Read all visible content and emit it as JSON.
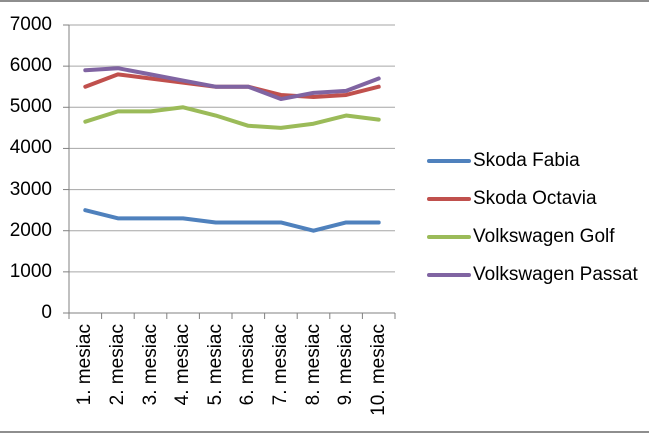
{
  "chart_data": {
    "type": "line",
    "title": "",
    "xlabel": "",
    "ylabel": "",
    "categories": [
      "1. mesiac",
      "2. mesiac",
      "3. mesiac",
      "4. mesiac",
      "5. mesiac",
      "6. mesiac",
      "7. mesiac",
      "8. mesiac",
      "9. mesiac",
      "10. mesiac"
    ],
    "series": [
      {
        "name": "Skoda Fabia",
        "color": "#4F81BD",
        "values": [
          2500,
          2300,
          2300,
          2300,
          2200,
          2200,
          2200,
          2000,
          2200,
          2200
        ]
      },
      {
        "name": "Skoda Octavia",
        "color": "#C0504D",
        "values": [
          5500,
          5800,
          5700,
          5600,
          5500,
          5500,
          5300,
          5250,
          5300,
          5500
        ]
      },
      {
        "name": "Volkswagen Golf",
        "color": "#9BBB59",
        "values": [
          4650,
          4900,
          4900,
          5000,
          4800,
          4550,
          4500,
          4600,
          4800,
          4700
        ]
      },
      {
        "name": "Volkswagen Passat",
        "color": "#8064A2",
        "values": [
          5900,
          5950,
          5800,
          5650,
          5500,
          5500,
          5200,
          5350,
          5400,
          5700
        ]
      }
    ],
    "ylim": [
      0,
      7000
    ],
    "yticks": [
      0,
      1000,
      2000,
      3000,
      4000,
      5000,
      6000,
      7000
    ],
    "grid": "horizontal gridlines on",
    "legend_position": "right",
    "colors": {
      "gridline": "#a6a6a6",
      "axis": "#808080",
      "chart_border": "#8e8e8e",
      "text": "#000000",
      "background": "#ffffff"
    }
  }
}
